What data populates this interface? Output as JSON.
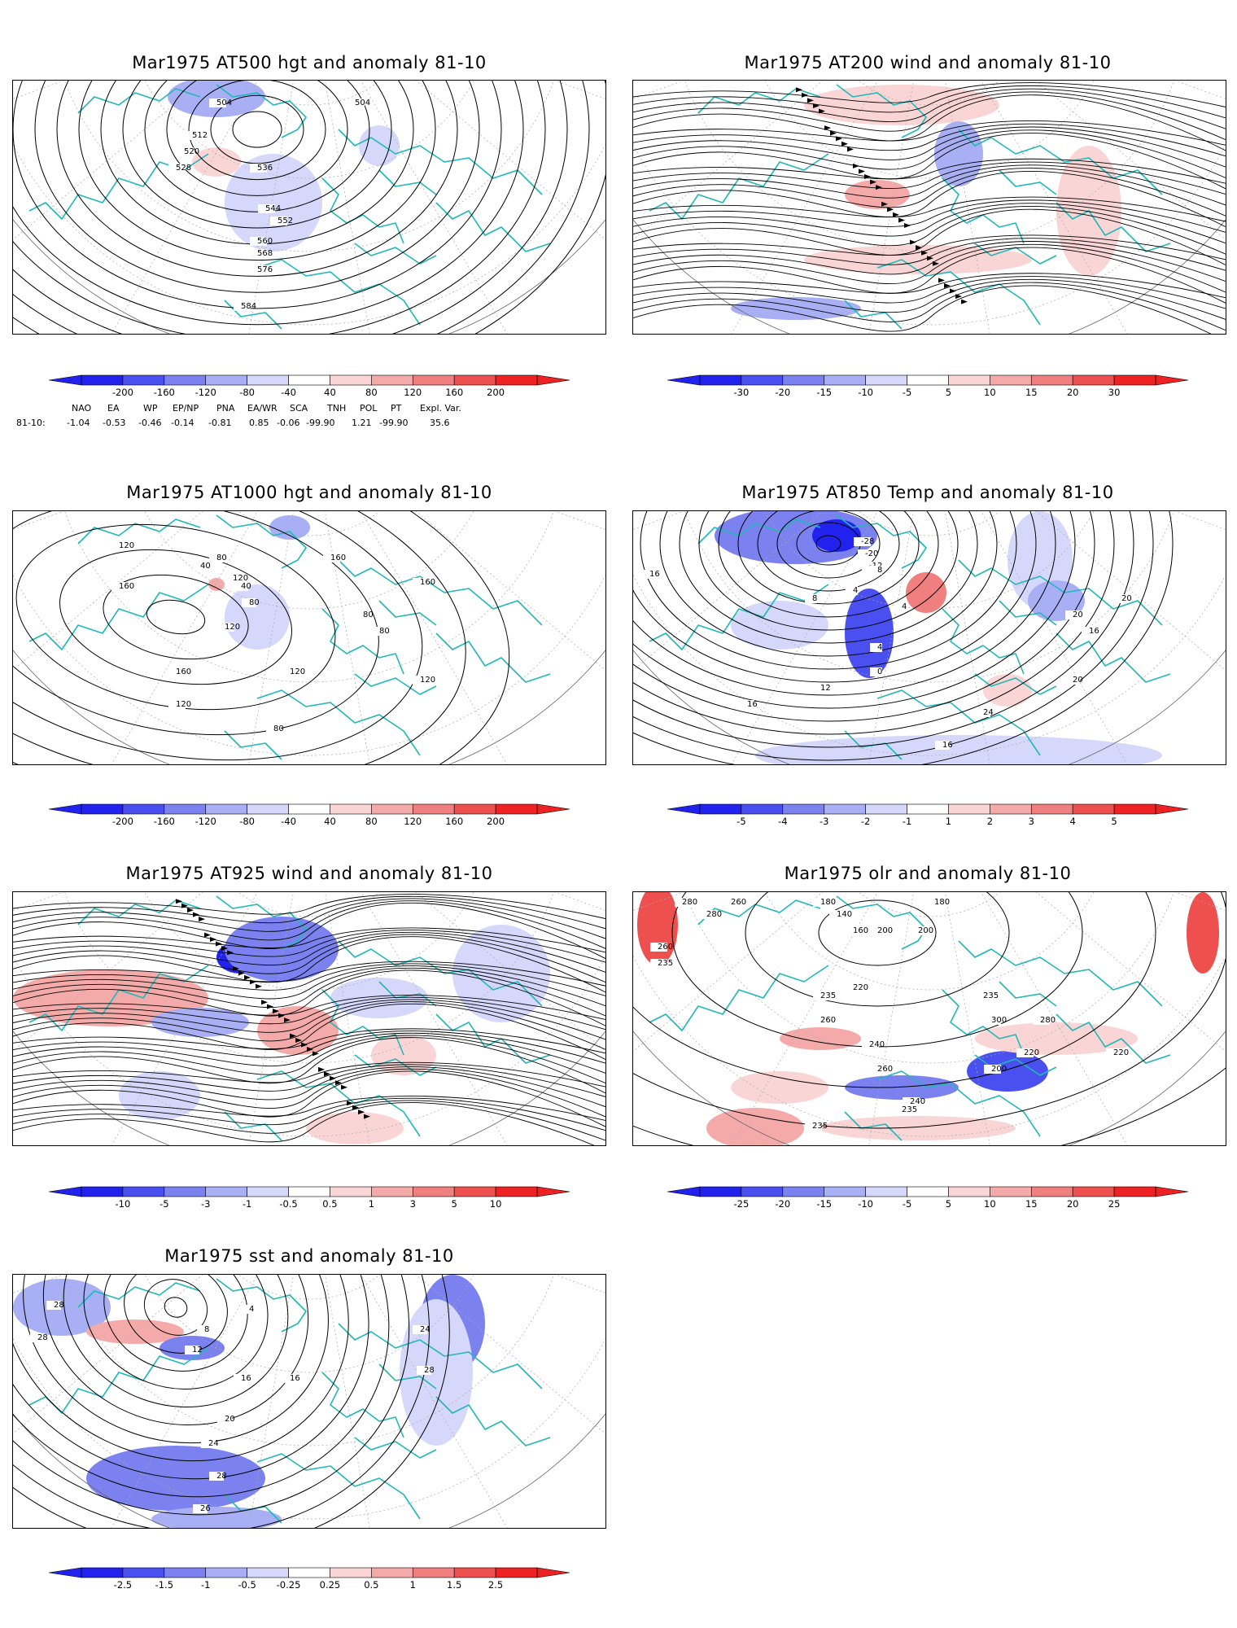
{
  "colors": {
    "coast": "#20b8b8",
    "contour": "#000000",
    "grid": "#aaaaaa",
    "blue_scale": [
      "#2222ee",
      "#4a50f0",
      "#7b82f0",
      "#a9aff5",
      "#d5d8fa"
    ],
    "red_scale": [
      "#fad5d5",
      "#f5aaaa",
      "#f07f7f",
      "#ee5050",
      "#ee2222"
    ]
  },
  "panels": [
    {
      "title": "Mar1975 AT500 hgt and anomaly 81-10",
      "colorbar_ticks": [
        "-200",
        "-160",
        "-120",
        "-80",
        "-40",
        "40",
        "80",
        "120",
        "160",
        "200"
      ],
      "contour_labels": [
        "504",
        "504",
        "512",
        "520",
        "528",
        "536",
        "544",
        "552",
        "560",
        "568",
        "576",
        "584"
      ]
    },
    {
      "title": "Mar1975 AT200 wind and anomaly 81-10",
      "colorbar_ticks": [
        "-30",
        "-20",
        "-15",
        "-10",
        "-5",
        "5",
        "10",
        "15",
        "20",
        "30"
      ],
      "contour_labels": []
    },
    {
      "title": "Mar1975 AT1000 hgt and anomaly 81-10",
      "colorbar_ticks": [
        "-200",
        "-160",
        "-120",
        "-80",
        "-40",
        "40",
        "80",
        "120",
        "160",
        "200"
      ],
      "contour_labels": [
        "120",
        "80",
        "160",
        "40",
        "120",
        "40",
        "80",
        "160",
        "120",
        "160",
        "120",
        "80",
        "80",
        "120",
        "160",
        "120",
        "80"
      ]
    },
    {
      "title": "Mar1975 AT850 Temp and anomaly 81-10",
      "colorbar_ticks": [
        "-5",
        "-4",
        "-3",
        "-2",
        "-1",
        "1",
        "2",
        "3",
        "4",
        "5"
      ],
      "contour_labels": [
        "16",
        "-28",
        "-20",
        "-12",
        "8",
        "4",
        "4",
        "8",
        "4",
        "0",
        "12",
        "16",
        "20",
        "24",
        "16",
        "20",
        "20",
        "16"
      ]
    },
    {
      "title": "Mar1975 AT925 wind and anomaly 81-10",
      "colorbar_ticks": [
        "-10",
        "-5",
        "-3",
        "-1",
        "-0.5",
        "0.5",
        "1",
        "3",
        "5",
        "10"
      ],
      "contour_labels": []
    },
    {
      "title": "Mar1975 olr and anomaly 81-10",
      "colorbar_ticks": [
        "-25",
        "-20",
        "-15",
        "-10",
        "-5",
        "5",
        "10",
        "15",
        "20",
        "25"
      ],
      "contour_labels": [
        "280",
        "260",
        "280",
        "180",
        "140",
        "160",
        "200",
        "180",
        "200",
        "260",
        "235",
        "220",
        "235",
        "235",
        "260",
        "240",
        "260",
        "300",
        "280",
        "220",
        "200",
        "235",
        "240",
        "235",
        "220"
      ]
    },
    {
      "title": "Mar1975 sst and anomaly 81-10",
      "colorbar_ticks": [
        "-2.5",
        "-1.5",
        "-1",
        "-0.5",
        "-0.25",
        "0.25",
        "0.5",
        "1",
        "1.5",
        "2.5"
      ],
      "contour_labels": [
        "28",
        "28",
        "4",
        "8",
        "12",
        "16",
        "16",
        "20",
        "24",
        "28",
        "26",
        "24",
        "28"
      ]
    }
  ],
  "indices": {
    "header": [
      "NAO",
      "EA",
      "WP",
      "EP/NP",
      "PNA",
      "EA/WR",
      "SCA",
      "TNH",
      "POL",
      "PT",
      "Expl. Var."
    ],
    "row_label": "81-10:",
    "values": [
      "-1.04",
      "-0.53",
      "-0.46",
      "-0.14",
      "-0.81",
      "0.85",
      "-0.06",
      "-99.90",
      "1.21",
      "-99.90",
      "35.6"
    ]
  }
}
